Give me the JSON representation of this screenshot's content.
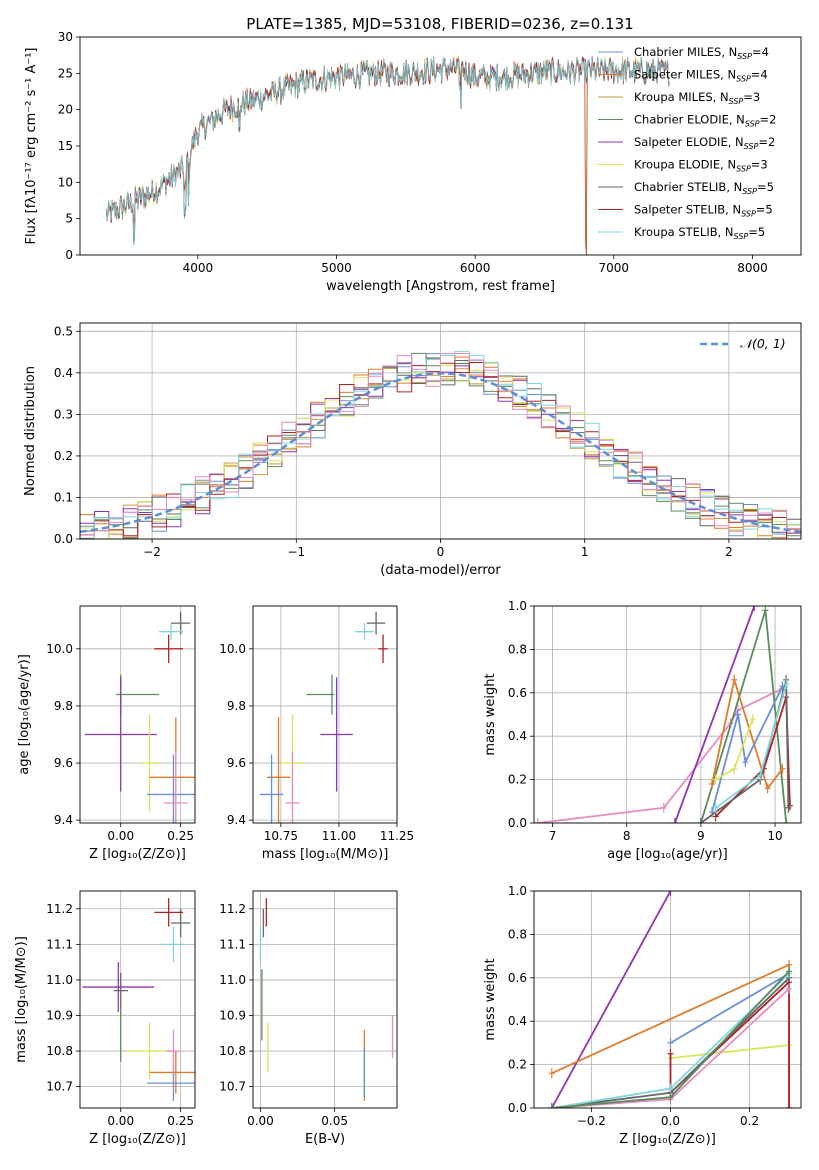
{
  "figure_title": "PLATE=1385, MJD=53108, FIBERID=0236, z=0.131",
  "colors": {
    "Chabrier MILES": "#6b8fd6",
    "Salpeter MILES": "#e07b2c",
    "Kroupa MILES": "#c79a3e",
    "Chabrier ELODIE": "#5e8a5e",
    "Salpeter ELODIE": "#8e35b3",
    "Kroupa ELODIE": "#d9e65c",
    "Chabrier STELIB": "#666666",
    "Salpeter STELIB": "#b22222",
    "Kroupa STELIB": "#7fd6dc",
    "pink": "#e58cc4",
    "gauss": "#5b8fd6",
    "grid": "#b0b0b0"
  },
  "chart_data": [
    {
      "id": "spectrum",
      "type": "line",
      "title": "PLATE=1385, MJD=53108, FIBERID=0236, z=0.131",
      "xlabel": "wavelength [Angstrom, rest frame]",
      "ylabel": "Flux [fλ10⁻¹⁷ erg cm⁻² s⁻¹ A⁻¹]",
      "xlim": [
        3150,
        8350
      ],
      "ylim": [
        0,
        30
      ],
      "xticks": [
        4000,
        5000,
        6000,
        7000,
        8000
      ],
      "yticks": [
        0,
        5,
        10,
        15,
        20,
        25,
        30
      ],
      "legend_position": "top-right",
      "legend": [
        "Chabrier MILES, N_SSP=4",
        "Salpeter MILES, N_SSP=4",
        "Kroupa MILES, N_SSP=3",
        "Chabrier ELODIE, N_SSP=2",
        "Salpeter ELODIE, N_SSP=2",
        "Kroupa ELODIE, N_SSP=3",
        "Chabrier STELIB, N_SSP=5",
        "Salpeter STELIB, N_SSP=5",
        "Kroupa STELIB, N_SSP=5"
      ],
      "continuum": [
        [
          3340,
          5.5
        ],
        [
          3500,
          7
        ],
        [
          3700,
          9
        ],
        [
          3900,
          12
        ],
        [
          4000,
          17
        ],
        [
          4200,
          20
        ],
        [
          4500,
          22
        ],
        [
          4800,
          24
        ],
        [
          5000,
          24.5
        ],
        [
          5300,
          25
        ],
        [
          5600,
          25.2
        ],
        [
          5900,
          25.8
        ],
        [
          6000,
          24.5
        ],
        [
          6200,
          24.5
        ],
        [
          6500,
          25.2
        ],
        [
          7000,
          25.4
        ],
        [
          7400,
          25.2
        ]
      ],
      "dips": [
        [
          3540,
          -5.5
        ],
        [
          3910,
          -7
        ],
        [
          3935,
          -5
        ],
        [
          4300,
          -4
        ],
        [
          5890,
          -4
        ],
        [
          6800,
          -25
        ],
        [
          7410,
          -25
        ]
      ]
    },
    {
      "id": "residuals",
      "type": "histogram",
      "xlabel": "(data-model)/error",
      "ylabel": "Normed distribution",
      "xlim": [
        -2.5,
        2.5
      ],
      "ylim": [
        0,
        0.52
      ],
      "xticks": [
        -2,
        -1,
        0,
        1,
        2
      ],
      "yticks": [
        0.0,
        0.1,
        0.2,
        0.3,
        0.4,
        0.5
      ],
      "legend_position": "top-right",
      "legend": [
        "𝒩(0, 1)"
      ],
      "bin_width": 0.1
    },
    {
      "id": "age_vs_Z",
      "type": "errorbar",
      "xlabel": "Z [log₁₀(Z/Z⊙)]",
      "ylabel": "age  [log₁₀(age/yr)]",
      "xlim": [
        -0.17,
        0.31
      ],
      "ylim": [
        9.39,
        10.15
      ],
      "xticks": [
        0.0,
        0.25
      ],
      "xtick_labels": [
        "0.00",
        "0.25"
      ],
      "yticks": [
        9.4,
        9.6,
        9.8,
        10.0
      ],
      "points": [
        {
          "x": 0.25,
          "y": 10.09,
          "xe": 0.04,
          "ye": 0.04,
          "c": "#666666"
        },
        {
          "x": 0.21,
          "y": 10.06,
          "xe": 0.05,
          "ye": 0.03,
          "c": "#7fd6dc"
        },
        {
          "x": 0.2,
          "y": 10.0,
          "xe": 0.06,
          "ye": 0.05,
          "c": "#b22222"
        },
        {
          "x": 0.0,
          "y": 9.84,
          "xe": 0.0,
          "ye": 0.07,
          "c": "#5e8a5e"
        },
        {
          "x": 0.07,
          "y": 9.84,
          "xe": 0.09,
          "ye": 0.0,
          "c": "#5e8a5e"
        },
        {
          "x": 0.0,
          "y": 9.7,
          "xe": 0.15,
          "ye": 0.2,
          "c": "#8e35b3"
        },
        {
          "x": 0.12,
          "y": 9.6,
          "xe": 0.04,
          "ye": 0.17,
          "c": "#d9e65c"
        },
        {
          "x": 0.23,
          "y": 9.55,
          "xe": 0.11,
          "ye": 0.21,
          "c": "#e07b2c"
        },
        {
          "x": 0.22,
          "y": 9.49,
          "xe": 0.11,
          "ye": 0.14,
          "c": "#6b8fd6"
        },
        {
          "x": 0.23,
          "y": 9.46,
          "xe": 0.05,
          "ye": 0.18,
          "c": "#e58cc4"
        }
      ]
    },
    {
      "id": "age_vs_mass",
      "type": "errorbar",
      "xlabel": "mass [log₁₀(M/M⊙)]",
      "ylabel": "",
      "xlim": [
        10.63,
        11.25
      ],
      "ylim": [
        9.39,
        10.15
      ],
      "xticks": [
        10.75,
        11.0,
        11.25
      ],
      "xtick_labels": [
        "10.75",
        "11.00",
        "11.25"
      ],
      "yticks": [
        9.4,
        9.6,
        9.8,
        10.0
      ],
      "points": [
        {
          "x": 11.16,
          "y": 10.09,
          "xe": 0.04,
          "ye": 0.04,
          "c": "#666666"
        },
        {
          "x": 11.11,
          "y": 10.06,
          "xe": 0.04,
          "ye": 0.03,
          "c": "#7fd6dc"
        },
        {
          "x": 11.19,
          "y": 10.0,
          "xe": 0.02,
          "ye": 0.05,
          "c": "#b22222"
        },
        {
          "x": 10.97,
          "y": 9.84,
          "xe": 0.0,
          "ye": 0.07,
          "c": "#5e8a5e"
        },
        {
          "x": 10.92,
          "y": 9.84,
          "xe": 0.06,
          "ye": 0.0,
          "c": "#5e8a5e"
        },
        {
          "x": 10.99,
          "y": 9.7,
          "xe": 0.07,
          "ye": 0.2,
          "c": "#8e35b3"
        },
        {
          "x": 10.8,
          "y": 9.6,
          "xe": 0.05,
          "ye": 0.17,
          "c": "#d9e65c"
        },
        {
          "x": 10.74,
          "y": 9.55,
          "xe": 0.05,
          "ye": 0.21,
          "c": "#e07b2c"
        },
        {
          "x": 10.71,
          "y": 9.49,
          "xe": 0.05,
          "ye": 0.14,
          "c": "#6b8fd6"
        },
        {
          "x": 10.8,
          "y": 9.46,
          "xe": 0.03,
          "ye": 0.18,
          "c": "#e58cc4"
        }
      ]
    },
    {
      "id": "mass_weight_vs_age",
      "type": "line",
      "xlabel": "age  [log₁₀(age/yr)]",
      "ylabel": "mass weight",
      "xlim": [
        6.75,
        10.35
      ],
      "ylim": [
        0,
        1
      ],
      "xticks": [
        7,
        8,
        9,
        10
      ],
      "yticks": [
        0.0,
        0.2,
        0.4,
        0.6,
        0.8,
        1.0
      ],
      "series": [
        {
          "c": "#e58cc4",
          "x": [
            6.8,
            8.5,
            9.4,
            9.5,
            10.1
          ],
          "y": [
            0.0,
            0.07,
            0.46,
            0.52,
            0.62
          ]
        },
        {
          "c": "#8e35b3",
          "x": [
            8.65,
            9.72
          ],
          "y": [
            0.0,
            1.0
          ]
        },
        {
          "c": "#5e8a5e",
          "x": [
            9.0,
            9.87,
            10.15
          ],
          "y": [
            0.0,
            0.98,
            0.0
          ]
        },
        {
          "c": "#e07b2c",
          "x": [
            9.15,
            9.45,
            9.9,
            10.1
          ],
          "y": [
            0.18,
            0.66,
            0.16,
            0.25
          ]
        },
        {
          "c": "#6b8fd6",
          "x": [
            9.15,
            9.5,
            9.6,
            10.1
          ],
          "y": [
            0.05,
            0.5,
            0.28,
            0.63
          ]
        },
        {
          "c": "#d9e65c",
          "x": [
            9.2,
            9.45,
            9.7
          ],
          "y": [
            0.2,
            0.25,
            0.48
          ]
        },
        {
          "c": "#b22222",
          "x": [
            9.2,
            9.85,
            10.15,
            10.2
          ],
          "y": [
            0.03,
            0.25,
            0.58,
            0.08
          ]
        },
        {
          "c": "#666666",
          "x": [
            9.0,
            9.8,
            10.15,
            10.18
          ],
          "y": [
            0.0,
            0.2,
            0.66,
            0.07
          ]
        },
        {
          "c": "#7fd6dc",
          "x": [
            9.2,
            9.8,
            10.15
          ],
          "y": [
            0.07,
            0.22,
            0.64
          ]
        }
      ]
    },
    {
      "id": "mass_vs_Z",
      "type": "errorbar",
      "xlabel": "Z [log₁₀(Z/Z⊙)]",
      "ylabel": "mass [log₁₀(M/M⊙)]",
      "xlim": [
        -0.17,
        0.31
      ],
      "ylim": [
        10.64,
        11.25
      ],
      "xticks": [
        0.0,
        0.25
      ],
      "xtick_labels": [
        "0.00",
        "0.25"
      ],
      "yticks": [
        10.7,
        10.8,
        10.9,
        11.0,
        11.1,
        11.2
      ],
      "points": [
        {
          "x": 0.25,
          "y": 11.16,
          "xe": 0.04,
          "ye": 0.04,
          "c": "#666666"
        },
        {
          "x": 0.2,
          "y": 11.19,
          "xe": 0.06,
          "ye": 0.04,
          "c": "#b22222"
        },
        {
          "x": 0.22,
          "y": 11.1,
          "xe": 0.05,
          "ye": 0.05,
          "c": "#7fd6dc"
        },
        {
          "x": 0.0,
          "y": 10.97,
          "xe": 0.03,
          "ye": 0.05,
          "c": "#666666"
        },
        {
          "x": 0.0,
          "y": 10.85,
          "xe": 0.0,
          "ye": 0.08,
          "c": "#5e8a5e"
        },
        {
          "x": -0.01,
          "y": 10.98,
          "xe": 0.15,
          "ye": 0.07,
          "c": "#8e35b3"
        },
        {
          "x": 0.12,
          "y": 10.8,
          "xe": 0.1,
          "ye": 0.08,
          "c": "#d9e65c"
        },
        {
          "x": 0.23,
          "y": 10.74,
          "xe": 0.11,
          "ye": 0.06,
          "c": "#e07b2c"
        },
        {
          "x": 0.22,
          "y": 10.71,
          "xe": 0.11,
          "ye": 0.05,
          "c": "#6b8fd6"
        },
        {
          "x": 0.22,
          "y": 10.8,
          "xe": 0.03,
          "ye": 0.06,
          "c": "#e58cc4"
        }
      ]
    },
    {
      "id": "mass_vs_EBV",
      "type": "errorbar",
      "xlabel": "E(B-V)",
      "ylabel": "",
      "xlim": [
        -0.005,
        0.092
      ],
      "ylim": [
        10.64,
        11.25
      ],
      "xticks": [
        0.0,
        0.05
      ],
      "xtick_labels": [
        "0.00",
        "0.05"
      ],
      "yticks": [
        10.7,
        10.8,
        10.9,
        11.0,
        11.1,
        11.2
      ],
      "points": [
        {
          "x": 0.004,
          "y": 11.19,
          "xe": 0,
          "ye": 0.04,
          "c": "#b22222"
        },
        {
          "x": 0.002,
          "y": 11.16,
          "xe": 0,
          "ye": 0.04,
          "c": "#666666"
        },
        {
          "x": 0.0,
          "y": 11.1,
          "xe": 0,
          "ye": 0.05,
          "c": "#7fd6dc"
        },
        {
          "x": 0.001,
          "y": 10.93,
          "xe": 0,
          "ye": 0.1,
          "c": "#5e8a5e"
        },
        {
          "x": 0.005,
          "y": 10.81,
          "xe": 0,
          "ye": 0.07,
          "c": "#d9e65c"
        },
        {
          "x": 0.07,
          "y": 10.76,
          "xe": 0,
          "ye": 0.1,
          "c": "#e07b2c"
        },
        {
          "x": 0.07,
          "y": 10.74,
          "xe": 0,
          "ye": 0.07,
          "c": "#6b8fd6"
        },
        {
          "x": 0.089,
          "y": 10.84,
          "xe": 0,
          "ye": 0.06,
          "c": "#e58cc4"
        }
      ]
    },
    {
      "id": "mass_weight_vs_Z",
      "type": "line",
      "xlabel": "Z [log₁₀(Z/Z⊙)]",
      "ylabel": "mass weight",
      "xlim": [
        -0.345,
        0.33
      ],
      "ylim": [
        0,
        1
      ],
      "xticks": [
        -0.2,
        0.0,
        0.2
      ],
      "xtick_labels": [
        "−0.2",
        "0.0",
        "0.2"
      ],
      "yticks": [
        0.0,
        0.2,
        0.4,
        0.6,
        0.8,
        1.0
      ],
      "series": [
        {
          "c": "#8e35b3",
          "x": [
            -0.3,
            0.0
          ],
          "y": [
            0.0,
            1.0
          ]
        },
        {
          "c": "#e07b2c",
          "x": [
            -0.3,
            0.3,
            0.3
          ],
          "y": [
            0.16,
            0.66,
            0.0
          ]
        },
        {
          "c": "#6b8fd6",
          "x": [
            0.0,
            0.3,
            0.3
          ],
          "y": [
            0.3,
            0.62,
            0.0
          ]
        },
        {
          "c": "#d9e65c",
          "x": [
            0.0,
            0.3
          ],
          "y": [
            0.23,
            0.29
          ]
        },
        {
          "c": "#b22222",
          "x": [
            0.0,
            0.0,
            0.3,
            0.3
          ],
          "y": [
            0.25,
            0.07,
            0.58,
            0.0
          ]
        },
        {
          "c": "#666666",
          "x": [
            -0.3,
            0.0,
            0.3
          ],
          "y": [
            0.0,
            0.07,
            0.6
          ]
        },
        {
          "c": "#7fd6dc",
          "x": [
            -0.3,
            0.0,
            0.3
          ],
          "y": [
            0.0,
            0.09,
            0.62
          ]
        },
        {
          "c": "#e58cc4",
          "x": [
            -0.3,
            0.0,
            0.3
          ],
          "y": [
            0.0,
            0.04,
            0.55
          ]
        },
        {
          "c": "#5e8a5e",
          "x": [
            -0.3,
            0.0,
            0.3
          ],
          "y": [
            0.0,
            0.05,
            0.63
          ]
        }
      ]
    }
  ]
}
